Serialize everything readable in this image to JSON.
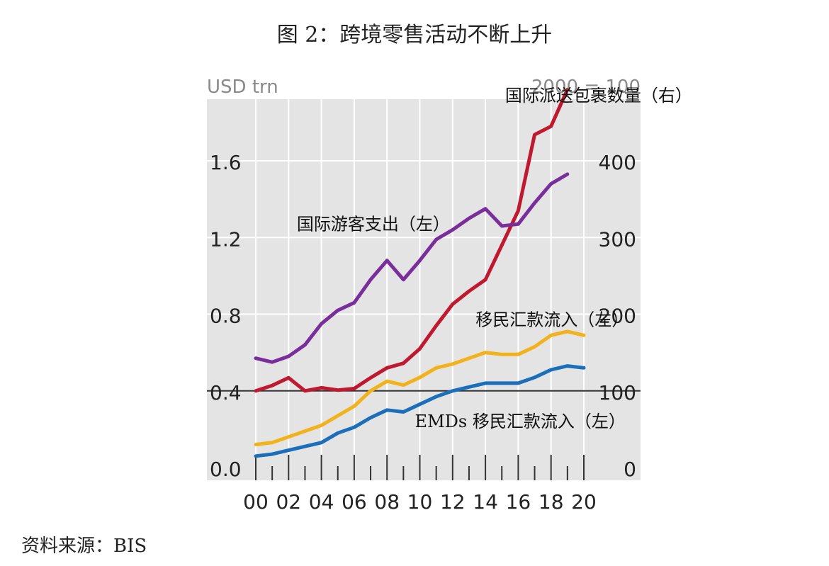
{
  "title": "图 2：跨境零售活动不断上升",
  "source": "资料来源：BIS",
  "chart_data": {
    "type": "line",
    "left_axis_label": "USD trn",
    "right_axis_label": "2000 = 100",
    "x": [
      2000,
      2001,
      2002,
      2003,
      2004,
      2005,
      2006,
      2007,
      2008,
      2009,
      2010,
      2011,
      2012,
      2013,
      2014,
      2015,
      2016,
      2017,
      2018,
      2019,
      2020
    ],
    "x_tick_labels": [
      "00",
      "02",
      "04",
      "06",
      "08",
      "10",
      "12",
      "14",
      "16",
      "18",
      "20"
    ],
    "x_tick_values": [
      2000,
      2002,
      2004,
      2006,
      2008,
      2010,
      2012,
      2014,
      2016,
      2018,
      2020
    ],
    "ylim_left": [
      0,
      2.0
    ],
    "ylim_right": [
      0,
      500
    ],
    "y_left_ticks": [
      0.0,
      0.4,
      0.8,
      1.2,
      1.6
    ],
    "y_left_tick_labels": [
      "0.0",
      "0.4",
      "0.8",
      "1.2",
      "1.6"
    ],
    "y_right_ticks": [
      0,
      100,
      200,
      300,
      400
    ],
    "y_right_tick_labels": [
      "0",
      "100",
      "200",
      "300",
      "400"
    ],
    "reference_line": 100,
    "series": [
      {
        "name": "国际派送包裹数量（右）",
        "axis": "right",
        "color": "#c0182f",
        "x": [
          2000,
          2001,
          2002,
          2003,
          2004,
          2005,
          2006,
          2007,
          2008,
          2009,
          2010,
          2011,
          2012,
          2013,
          2014,
          2015,
          2016,
          2017,
          2018,
          2019
        ],
        "values": [
          100,
          107,
          117,
          100,
          104,
          101,
          103,
          117,
          130,
          136,
          155,
          185,
          213,
          230,
          245,
          290,
          335,
          434,
          445,
          493
        ]
      },
      {
        "name": "国际游客支出（左）",
        "axis": "left",
        "color": "#7a2e9b",
        "x": [
          2000,
          2001,
          2002,
          2003,
          2004,
          2005,
          2006,
          2007,
          2008,
          2009,
          2010,
          2011,
          2012,
          2013,
          2014,
          2015,
          2016,
          2017,
          2018,
          2019
        ],
        "values": [
          0.57,
          0.55,
          0.58,
          0.64,
          0.75,
          0.82,
          0.86,
          0.98,
          1.08,
          0.98,
          1.08,
          1.19,
          1.24,
          1.3,
          1.35,
          1.26,
          1.27,
          1.38,
          1.48,
          1.53
        ]
      },
      {
        "name": "移民汇款流入（左）",
        "axis": "left",
        "color": "#f2b21c",
        "x": [
          2000,
          2001,
          2002,
          2003,
          2004,
          2005,
          2006,
          2007,
          2008,
          2009,
          2010,
          2011,
          2012,
          2013,
          2014,
          2015,
          2016,
          2017,
          2018,
          2019,
          2020
        ],
        "values": [
          0.12,
          0.13,
          0.16,
          0.19,
          0.22,
          0.27,
          0.32,
          0.4,
          0.45,
          0.43,
          0.47,
          0.52,
          0.54,
          0.57,
          0.6,
          0.59,
          0.59,
          0.63,
          0.69,
          0.71,
          0.69
        ]
      },
      {
        "name": "EMDs 移民汇款流入（左）",
        "axis": "left",
        "color": "#1b6fba",
        "x": [
          2000,
          2001,
          2002,
          2003,
          2004,
          2005,
          2006,
          2007,
          2008,
          2009,
          2010,
          2011,
          2012,
          2013,
          2014,
          2015,
          2016,
          2017,
          2018,
          2019,
          2020
        ],
        "values": [
          0.06,
          0.07,
          0.09,
          0.11,
          0.13,
          0.18,
          0.21,
          0.26,
          0.3,
          0.29,
          0.33,
          0.37,
          0.4,
          0.42,
          0.44,
          0.44,
          0.44,
          0.47,
          0.51,
          0.53,
          0.52
        ]
      }
    ],
    "annotations": [
      {
        "text": "国际派送包裹数量（右）",
        "series": 0,
        "x": 2015.2,
        "y_left": 1.91,
        "anchor": "start"
      },
      {
        "text": "国际游客支出（左）",
        "series": 1,
        "x": 2002.5,
        "y_left": 1.24,
        "anchor": "start"
      },
      {
        "text": "移民汇款流入（左）",
        "series": 2,
        "x": 2013.4,
        "y_left": 0.74,
        "anchor": "start"
      },
      {
        "text": "EMDs 移民汇款流入（左）",
        "series": 3,
        "x": 2009.7,
        "y_left": 0.21,
        "anchor": "start"
      }
    ]
  }
}
